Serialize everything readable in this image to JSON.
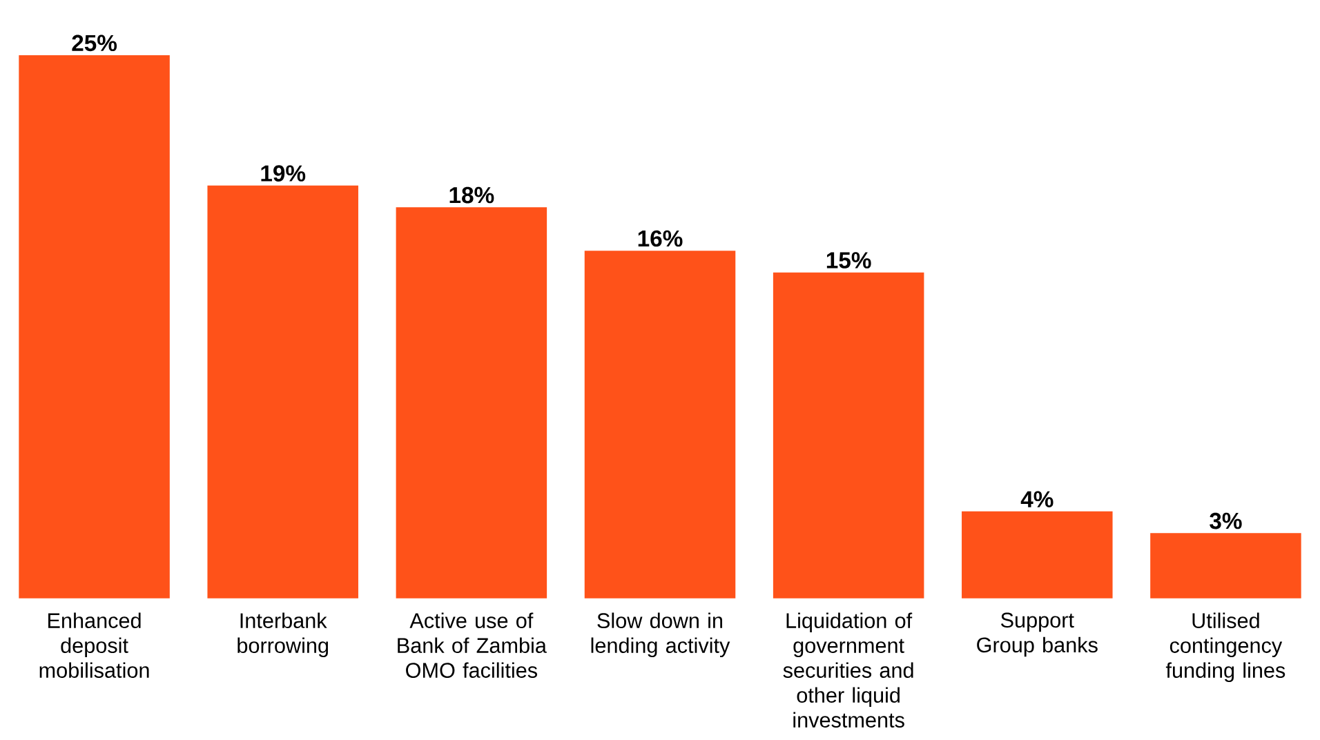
{
  "chart_data": {
    "type": "bar",
    "categories": [
      "Enhanced deposit mobilisation",
      "Interbank borrowing",
      "Active use of Bank of Zambia OMO facilities",
      "Slow down in lending activity",
      "Liquidation of government securities and other liquid investments",
      "Support Group banks",
      "Utilised contingency funding lines"
    ],
    "values": [
      25,
      19,
      18,
      16,
      15,
      4,
      3
    ],
    "value_labels": [
      "25%",
      "19%",
      "18%",
      "16%",
      "15%",
      "4%",
      "3%"
    ],
    "color": "#ff5219",
    "ylim": [
      0,
      25
    ],
    "tick_labels": "x"
  }
}
